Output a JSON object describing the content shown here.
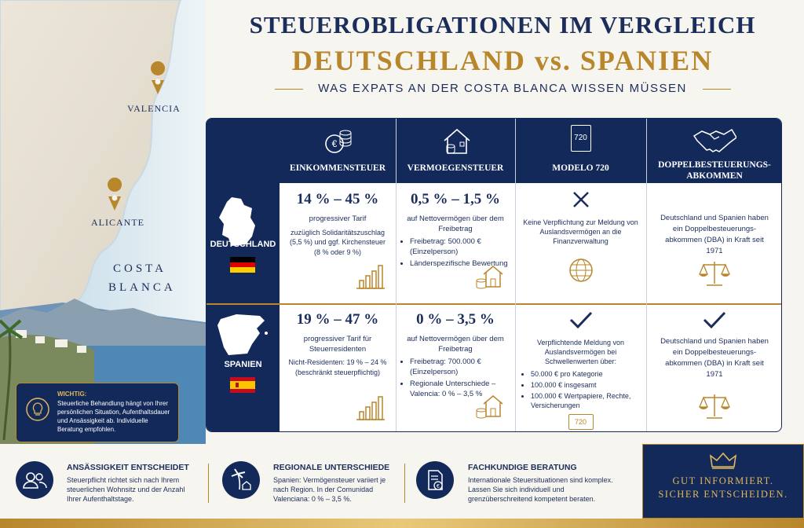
{
  "header": {
    "title": "STEUEROBLIGATIONEN IM VERGLEICH",
    "subtitle": "DEUTSCHLAND vs. SPANIEN",
    "tagline": "WAS EXPATS AN DER COSTA BLANCA WISSEN MÜSSEN"
  },
  "map": {
    "labels": [
      "VALENCIA",
      "ALICANTE"
    ],
    "region": "COSTA BLANCA"
  },
  "notice": {
    "title": "WICHTIG:",
    "text": "Steuerliche Behandlung hängt von Ihrer persönlichen Situation, Aufenthaltsdauer und Ansässigkeit ab. Individuelle Beratung empfohlen."
  },
  "table": {
    "columns": [
      {
        "title": "EINKOMMENSTEUER"
      },
      {
        "title": "VERMOEGENSTEUER"
      },
      {
        "title": "MODELO 720",
        "icon_label": "720"
      },
      {
        "title": "DOPPELBESTEUERUNGS-ABKOMMEN"
      }
    ],
    "rows": [
      {
        "country": "DEUTSCHLAND",
        "income": {
          "rate": "14 % – 45 %",
          "lines": [
            "progressiver Tarif",
            "zuzüglich Solidaritätszuschlag (5,5 %) und ggf. Kirchensteuer (8 % oder 9 %)"
          ]
        },
        "wealth": {
          "rate": "0,5 % – 1,5 %",
          "text": "auf Nettovermögen über dem Freibetrag",
          "bullets": [
            "Freibetrag: 500.000 € (Einzelperson)",
            "Länderspezifische Bewertung"
          ]
        },
        "modelo": {
          "text": "Keine Verpflichtung zur Meldung von Auslandsvermögen an die Finanzverwaltung"
        },
        "dba": {
          "text": "Deutschland und Spanien haben ein Doppelbesteuerungs-abkommen (DBA) in Kraft seit 1971"
        }
      },
      {
        "country": "SPANIEN",
        "income": {
          "rate": "19 % – 47 %",
          "lines": [
            "progressiver Tarif für Steuerresidenten",
            "Nicht-Residenten: 19 % – 24 % (beschränkt steuerpflichtig)"
          ]
        },
        "wealth": {
          "rate": "0 % – 3,5 %",
          "text": "auf Nettovermögen über dem Freibetrag",
          "bullets": [
            "Freibetrag: 700.000 € (Einzelperson)",
            "Regionale Unterschiede – Valencia: 0 % – 3,5 %"
          ]
        },
        "modelo": {
          "text": "Verpflichtende Meldung von Auslandsvermögen bei Schwellenwerten über:",
          "bullets": [
            "50.000 € pro Kategorie",
            "100.000 € insgesamt",
            "100.000 € Wertpapiere, Rechte, Versicherungen"
          ],
          "icon_label": "720"
        },
        "dba": {
          "text": "Deutschland und Spanien haben ein Doppelbesteuerungs-abkommen (DBA) in Kraft seit 1971"
        }
      }
    ]
  },
  "footer": {
    "items": [
      {
        "title": "ANSÄSSIGKEIT ENTSCHEIDET",
        "text": "Steuerpflicht richtet sich nach Ihrem steuerlichen Wohnsitz und der Anzahl Ihrer Aufenthaltstage."
      },
      {
        "title": "REGIONALE UNTERSCHIEDE",
        "text": "Spanien: Vermögensteuer variiert je nach Region. In der Comunidad Valenciana: 0 % – 3,5 %."
      },
      {
        "title": "FACHKUNDIGE BERATUNG",
        "text": "Internationale Steuersituationen sind komplex. Lassen Sie sich individuell und grenzüberschreitend kompetent beraten."
      }
    ],
    "badge": [
      "GUT INFORMIERT.",
      "SICHER ENTSCHEIDEN."
    ]
  }
}
